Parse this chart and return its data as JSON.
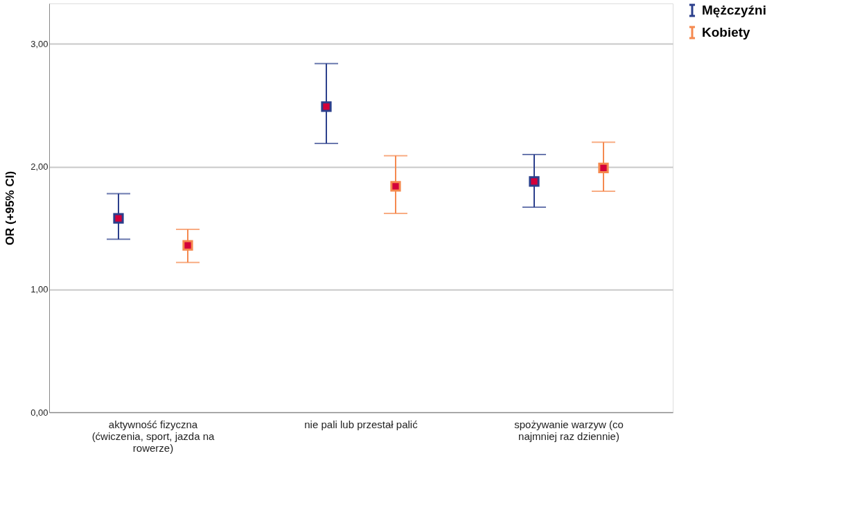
{
  "chart_data": {
    "type": "scatter",
    "ylabel": "OR (+95% CI)",
    "categories": [
      "aktywność fizyczna\n(ćwiczenia, sport, jazda na\nrowerze)",
      "nie pali lub przestał palić",
      "spożywanie warzyw (co\nnajmniej raz dziennie)"
    ],
    "series": [
      {
        "name": "Mężczyźni",
        "color": "#2b3f8c",
        "values": [
          1.58,
          2.49,
          1.88
        ],
        "errors": [
          [
            1.41,
            1.78
          ],
          [
            2.19,
            2.84
          ],
          [
            1.67,
            2.1
          ]
        ]
      },
      {
        "name": "Kobiety",
        "color": "#f5894f",
        "values": [
          1.36,
          1.84,
          1.99
        ],
        "errors": [
          [
            1.22,
            1.49
          ],
          [
            1.62,
            2.09
          ],
          [
            1.8,
            2.2
          ]
        ]
      }
    ],
    "ylim": [
      0,
      3.33
    ],
    "yticks": [
      {
        "value": 0,
        "label": "0,00"
      },
      {
        "value": 1,
        "label": "1,00"
      },
      {
        "value": 2,
        "label": "2,00"
      },
      {
        "value": 3,
        "label": "3,00"
      }
    ],
    "grid": "y",
    "legend": "top right",
    "marker": "square"
  }
}
